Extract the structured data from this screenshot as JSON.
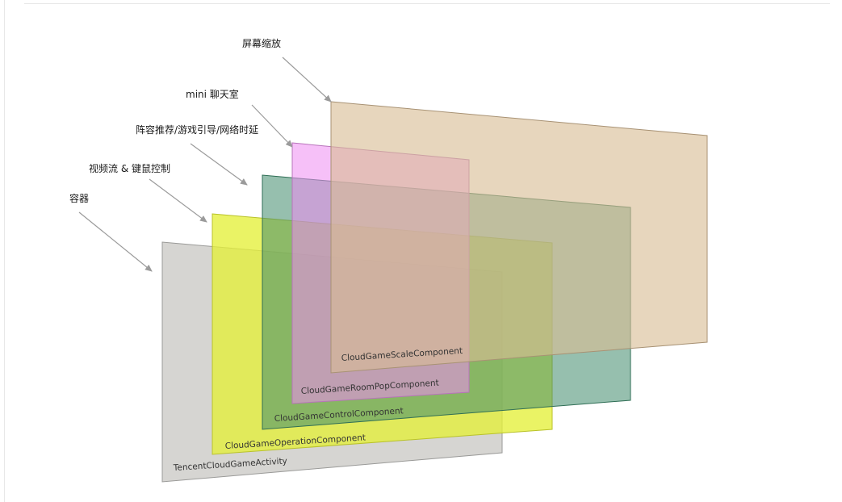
{
  "layers": [
    {
      "id": "activity",
      "component": "TencentCloudGameActivity",
      "callout": "容器",
      "fill": "#c8c7c3",
      "opacity": 0.75,
      "stroke": "#9a9a98"
    },
    {
      "id": "operation",
      "component": "CloudGameOperationComponent",
      "callout": "视频流 & 键鼠控制",
      "fill": "#e4ef3a",
      "opacity": 0.78,
      "stroke": "#b9c22a"
    },
    {
      "id": "control",
      "component": "CloudGameControlComponent",
      "callout": "阵容推荐/游戏引导/网络时延",
      "fill": "#3f8a6c",
      "opacity": 0.55,
      "stroke": "#2f6e55"
    },
    {
      "id": "roompop",
      "component": "CloudGameRoomPopComponent",
      "callout": "mini 聊天室",
      "fill": "#ee8cf2",
      "opacity": 0.55,
      "stroke": "#b873bb"
    },
    {
      "id": "scale",
      "component": "CloudGameScaleComponent",
      "callout": "屏幕缩放",
      "fill": "#d9bd95",
      "opacity": 0.62,
      "stroke": "#a89274"
    }
  ],
  "arrow_color": "#9b9b9b"
}
